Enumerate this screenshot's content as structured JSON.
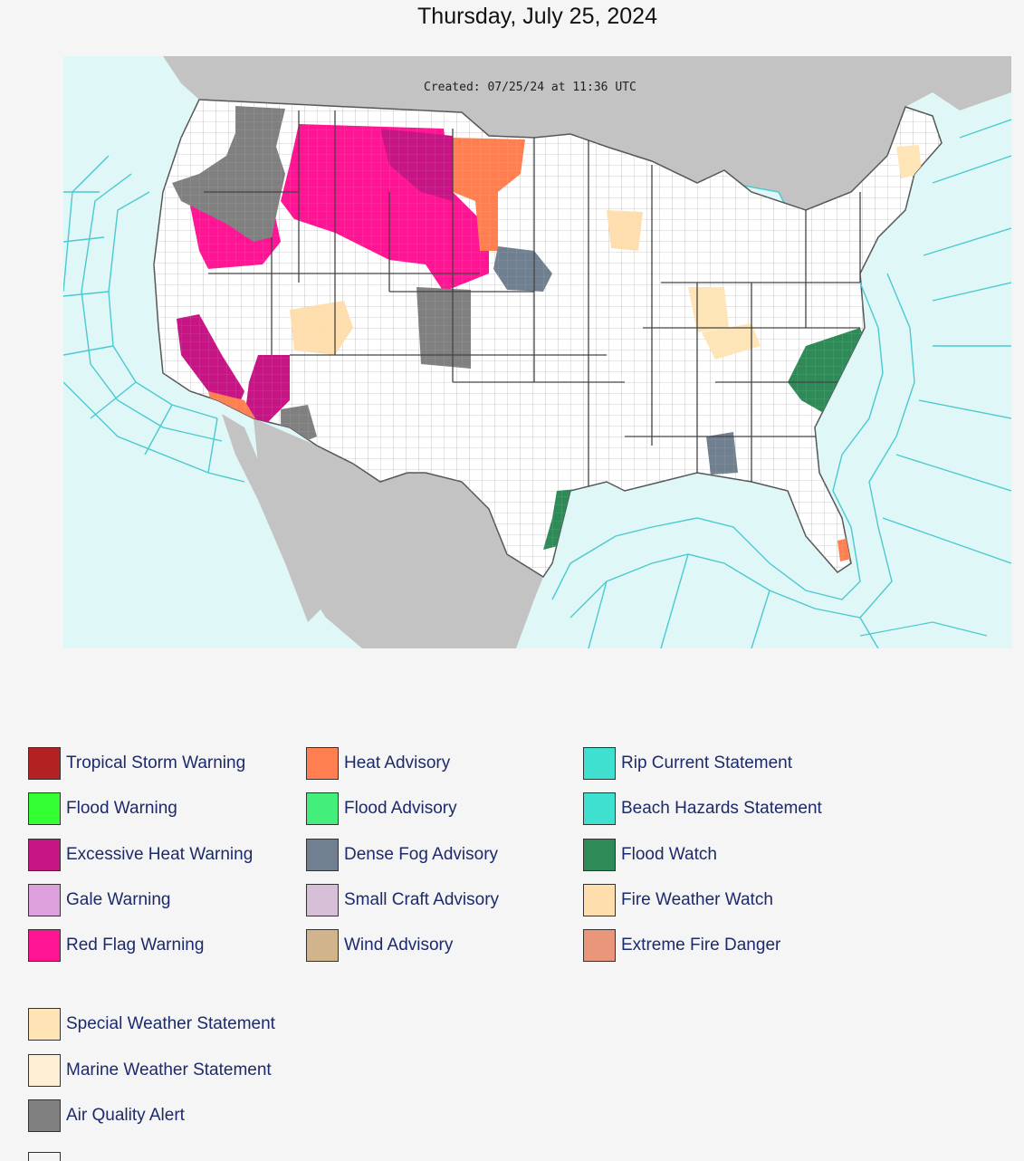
{
  "page": {
    "title": "Thursday, July 25, 2024"
  },
  "map": {
    "created_text": "Created: 07/25/24 at 11:36 UTC",
    "colors": {
      "ocean": "#dff7f7",
      "land_other": "#c3c3c3",
      "land_us": "#ffffff",
      "county_lines": "#9a9a9a",
      "marine_zones": "#4cc9cf"
    }
  },
  "legend": {
    "columns": [
      [
        {
          "label": "Tropical Storm Warning",
          "color": "#b22222"
        },
        {
          "label": "Flood Warning",
          "color": "#33ff33"
        },
        {
          "label": "Excessive Heat Warning",
          "color": "#c71585"
        },
        {
          "label": "Gale Warning",
          "color": "#dda0dd"
        },
        {
          "label": "Red Flag Warning",
          "color": "#ff1493"
        }
      ],
      [
        {
          "label": "Heat Advisory",
          "color": "#ff7f50"
        },
        {
          "label": "Flood Advisory",
          "color": "#44ee7a"
        },
        {
          "label": "Dense Fog Advisory",
          "color": "#708090"
        },
        {
          "label": "Small Craft Advisory",
          "color": "#d8bfd8"
        },
        {
          "label": "Wind Advisory",
          "color": "#d2b48c"
        }
      ],
      [
        {
          "label": "Rip Current Statement",
          "color": "#40e0d0"
        },
        {
          "label": "Beach Hazards Statement",
          "color": "#40e0d0"
        },
        {
          "label": "Flood Watch",
          "color": "#2e8b57"
        },
        {
          "label": "Fire Weather Watch",
          "color": "#ffdead"
        },
        {
          "label": "Extreme Fire Danger",
          "color": "#e9967a"
        }
      ]
    ],
    "extra": [
      {
        "label": "Special Weather Statement",
        "color": "#ffe4b5"
      },
      {
        "label": "Marine Weather Statement",
        "color": "#ffefd5"
      },
      {
        "label": "Air Quality Alert",
        "color": "#808080"
      }
    ]
  }
}
